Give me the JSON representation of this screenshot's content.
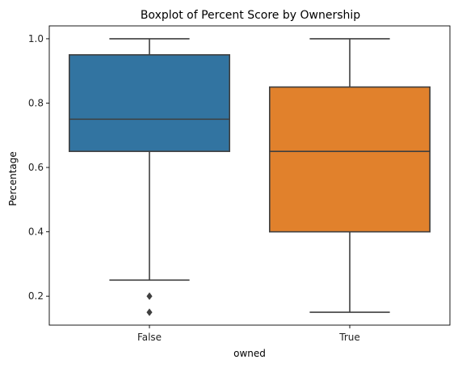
{
  "chart_data": {
    "type": "box",
    "title": "Boxplot of Percent Score by Ownership",
    "xlabel": "owned",
    "ylabel": "Percentage",
    "ylim": [
      0.11,
      1.04
    ],
    "yticks": [
      "0.2",
      "0.4",
      "0.6",
      "0.8",
      "1.0"
    ],
    "categories": [
      "False",
      "True"
    ],
    "series": [
      {
        "category": "False",
        "color": "#3274a1",
        "whisker_low": 0.25,
        "q1": 0.65,
        "median": 0.75,
        "q3": 0.95,
        "whisker_high": 1.0,
        "outliers": [
          0.2,
          0.15
        ]
      },
      {
        "category": "True",
        "color": "#e1812c",
        "whisker_low": 0.15,
        "q1": 0.4,
        "median": 0.65,
        "q3": 0.85,
        "whisker_high": 1.0,
        "outliers": []
      }
    ],
    "grid": false,
    "legend": "none"
  }
}
